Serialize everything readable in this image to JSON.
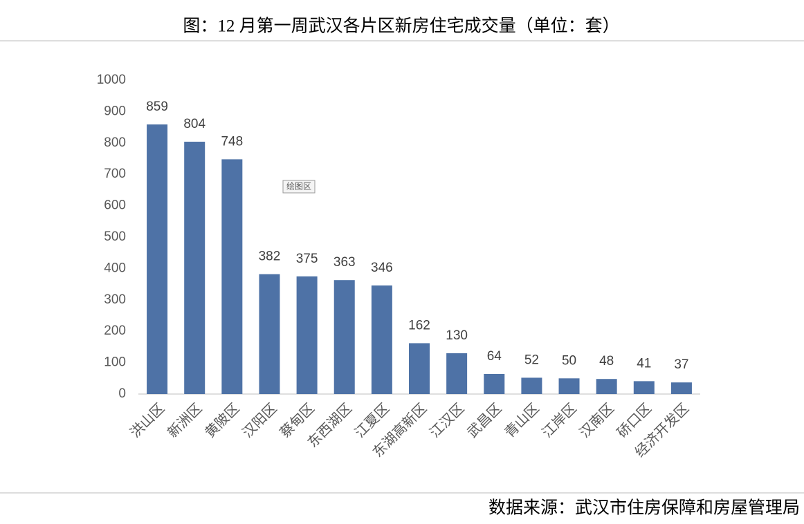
{
  "chart_data": {
    "type": "bar",
    "title": "图：12 月第一周武汉各片区新房住宅成交量（单位：套）",
    "source": "数据来源：武汉市住房保障和房屋管理局",
    "tooltip": "绘图区",
    "categories": [
      "洪山区",
      "新洲区",
      "黄陂区",
      "汉阳区",
      "蔡甸区",
      "东西湖区",
      "江夏区",
      "东湖高新区",
      "江汉区",
      "武昌区",
      "青山区",
      "江岸区",
      "汉南区",
      "硚口区",
      "经济开发区"
    ],
    "values": [
      859,
      804,
      748,
      382,
      375,
      363,
      346,
      162,
      130,
      64,
      52,
      50,
      48,
      41,
      37
    ],
    "color": "#4e72a6",
    "ylim": [
      0,
      1000
    ],
    "yticks": [
      0,
      100,
      200,
      300,
      400,
      500,
      600,
      700,
      800,
      900,
      1000
    ],
    "grid": false
  }
}
